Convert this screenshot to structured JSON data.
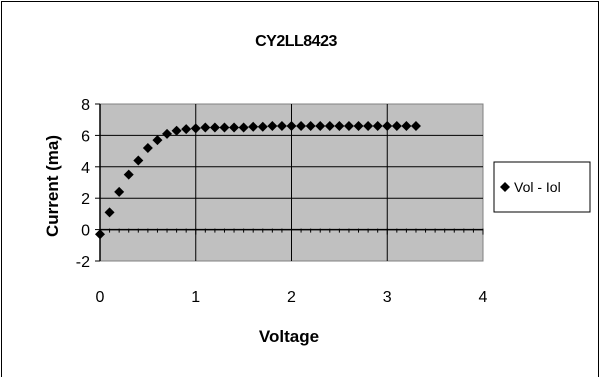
{
  "chart_data": {
    "type": "scatter",
    "title": "CY2LL8423",
    "xlabel": "Voltage",
    "ylabel": "Current (ma)",
    "xlim": [
      0,
      4
    ],
    "ylim": [
      -2,
      8
    ],
    "xticks": [
      0,
      1,
      2,
      3,
      4
    ],
    "yticks": [
      -2,
      0,
      2,
      4,
      6,
      8
    ],
    "grid": true,
    "legend_position": "right",
    "plot_background": "#c0c0c0",
    "marker": "diamond",
    "marker_color": "#000000",
    "series": [
      {
        "name": "Vol - Iol",
        "points": [
          [
            0.0,
            -0.3
          ],
          [
            0.1,
            1.1
          ],
          [
            0.2,
            2.4
          ],
          [
            0.3,
            3.5
          ],
          [
            0.4,
            4.4
          ],
          [
            0.5,
            5.2
          ],
          [
            0.6,
            5.7
          ],
          [
            0.7,
            6.1
          ],
          [
            0.8,
            6.3
          ],
          [
            0.9,
            6.4
          ],
          [
            1.0,
            6.45
          ],
          [
            1.1,
            6.5
          ],
          [
            1.2,
            6.5
          ],
          [
            1.3,
            6.5
          ],
          [
            1.4,
            6.5
          ],
          [
            1.5,
            6.5
          ],
          [
            1.6,
            6.55
          ],
          [
            1.7,
            6.55
          ],
          [
            1.8,
            6.6
          ],
          [
            1.9,
            6.6
          ],
          [
            2.0,
            6.6
          ],
          [
            2.1,
            6.6
          ],
          [
            2.2,
            6.6
          ],
          [
            2.3,
            6.6
          ],
          [
            2.4,
            6.6
          ],
          [
            2.5,
            6.6
          ],
          [
            2.6,
            6.6
          ],
          [
            2.7,
            6.6
          ],
          [
            2.8,
            6.6
          ],
          [
            2.9,
            6.6
          ],
          [
            3.0,
            6.6
          ],
          [
            3.1,
            6.6
          ],
          [
            3.2,
            6.6
          ],
          [
            3.3,
            6.6
          ]
        ]
      }
    ]
  }
}
